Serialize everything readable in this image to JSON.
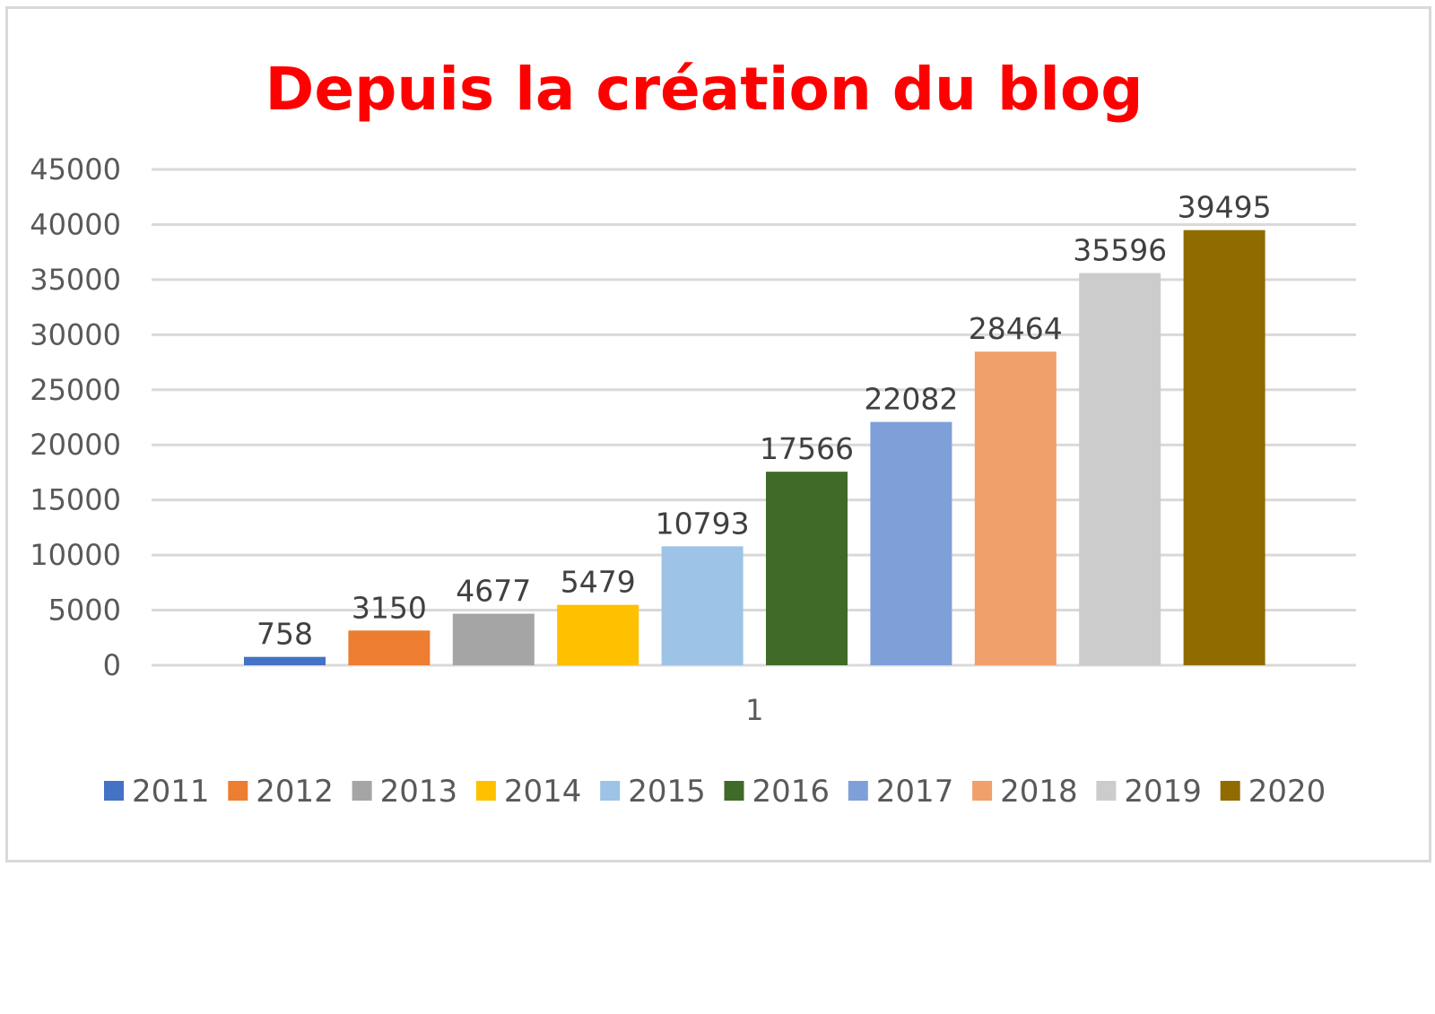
{
  "chart_data": {
    "type": "bar",
    "title": "Depuis la création du blog",
    "title_color": "#ff0000",
    "categories": [
      "1"
    ],
    "ylim": [
      0,
      45000
    ],
    "y_ticks": [
      0,
      5000,
      10000,
      15000,
      20000,
      25000,
      30000,
      35000,
      40000,
      45000
    ],
    "grid": true,
    "legend_position": "bottom",
    "data_labels": true,
    "series": [
      {
        "name": "2011",
        "values": [
          758
        ],
        "color": "#4472c4"
      },
      {
        "name": "2012",
        "values": [
          3150
        ],
        "color": "#ed7d31"
      },
      {
        "name": "2013",
        "values": [
          4677
        ],
        "color": "#a5a5a5"
      },
      {
        "name": "2014",
        "values": [
          5479
        ],
        "color": "#ffc000"
      },
      {
        "name": "2015",
        "values": [
          10793
        ],
        "color": "#9dc3e6"
      },
      {
        "name": "2016",
        "values": [
          17566
        ],
        "color": "#3f6a28"
      },
      {
        "name": "2017",
        "values": [
          22082
        ],
        "color": "#7f9fd9"
      },
      {
        "name": "2018",
        "values": [
          28464
        ],
        "color": "#f0a06a"
      },
      {
        "name": "2019",
        "values": [
          35596
        ],
        "color": "#cccccc"
      },
      {
        "name": "2020",
        "values": [
          39495
        ],
        "color": "#8f6b00"
      }
    ]
  }
}
